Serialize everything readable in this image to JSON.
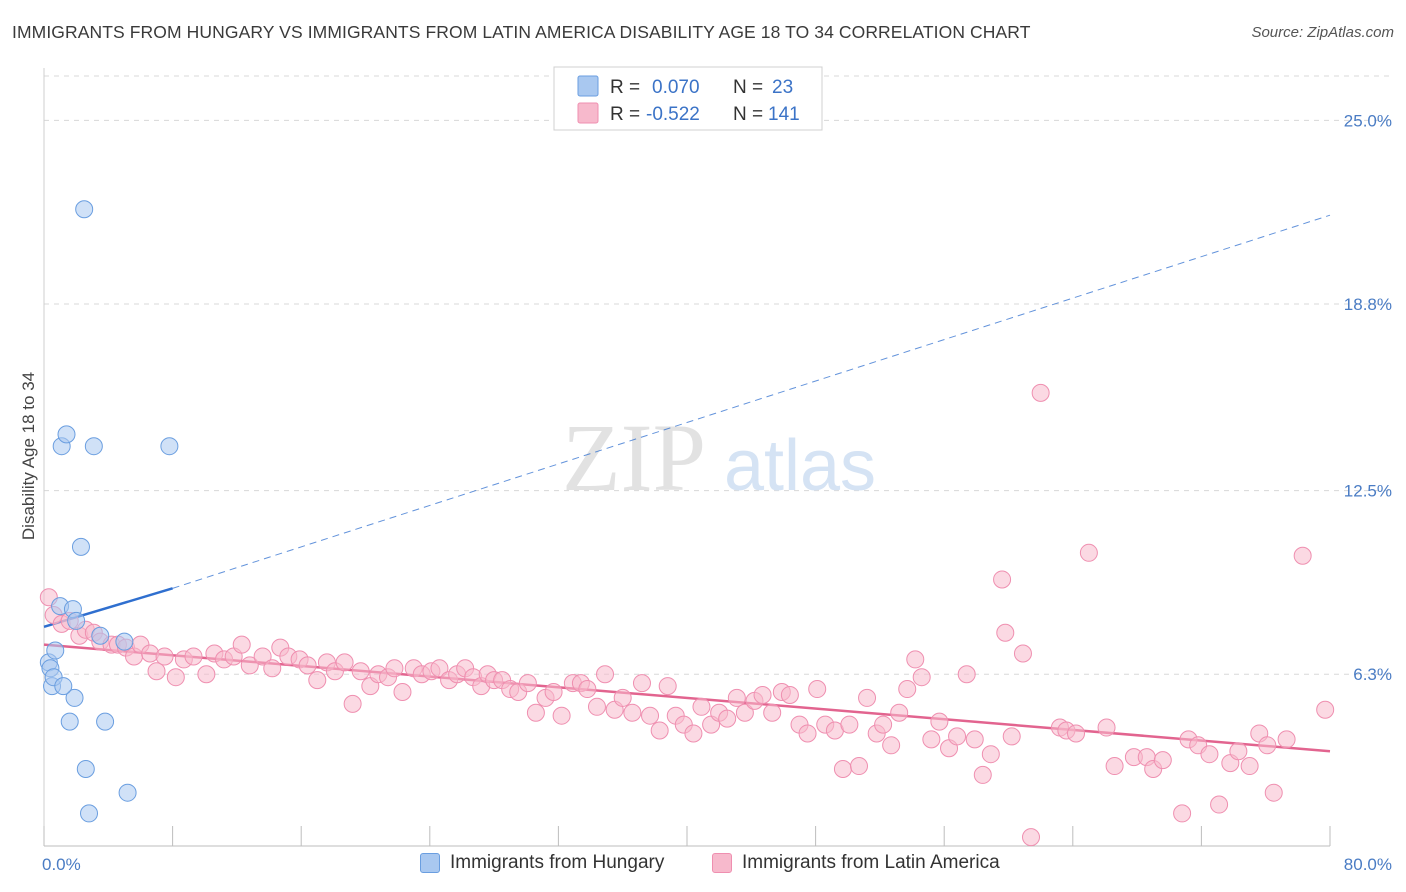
{
  "title": "IMMIGRANTS FROM HUNGARY VS IMMIGRANTS FROM LATIN AMERICA DISABILITY AGE 18 TO 34 CORRELATION CHART",
  "source": "Source: ZipAtlas.com",
  "watermark": {
    "zip": "ZIP",
    "atlas": "atlas"
  },
  "colors": {
    "hungary_fill": "#a9c8f0",
    "hungary_stroke": "#6a9ee0",
    "hungary_line": "#2f6fcf",
    "latam_fill": "#f7b9cc",
    "latam_stroke": "#ef8fb0",
    "latam_line": "#e2648f",
    "tick_label": "#4a7cc4",
    "grid": "#d8d8d8"
  },
  "legend": {
    "rows": [
      {
        "r_label": "R =",
        "r_value": "0.070",
        "n_label": "N =",
        "n_value": "23"
      },
      {
        "r_label": "R =",
        "r_value": "-0.522",
        "n_label": "N =",
        "n_value": "141"
      }
    ]
  },
  "bottom_legend": [
    "Immigrants from Hungary",
    "Immigrants from Latin America"
  ],
  "chart_data": {
    "type": "scatter",
    "title": "IMMIGRANTS FROM HUNGARY VS IMMIGRANTS FROM LATIN AMERICA DISABILITY AGE 18 TO 34 CORRELATION CHART",
    "xlabel": "",
    "ylabel": "Disability Age 18 to 34",
    "xlim": [
      0,
      80
    ],
    "ylim": [
      0.5,
      26.5
    ],
    "x_tick_labels": [
      "0.0%",
      "80.0%"
    ],
    "y_ticks": [
      6.3,
      12.5,
      18.8,
      25.0
    ],
    "y_tick_labels": [
      "6.3%",
      "12.5%",
      "18.8%",
      "25.0%"
    ],
    "grid": true,
    "legend_position": "top-center",
    "series": [
      {
        "name": "Immigrants from Hungary",
        "R": 0.07,
        "N": 23,
        "trend": {
          "x": [
            0,
            8
          ],
          "y": [
            7.9,
            9.2
          ],
          "extended_x": [
            8,
            80
          ],
          "extended_y": [
            9.2,
            21.8
          ]
        },
        "points": [
          [
            0.3,
            6.7
          ],
          [
            0.4,
            6.5
          ],
          [
            0.5,
            5.9
          ],
          [
            0.6,
            6.2
          ],
          [
            0.7,
            7.1
          ],
          [
            1.0,
            8.6
          ],
          [
            1.1,
            14.0
          ],
          [
            1.4,
            14.4
          ],
          [
            1.6,
            4.7
          ],
          [
            1.8,
            8.5
          ],
          [
            1.9,
            5.5
          ],
          [
            2.0,
            8.1
          ],
          [
            2.3,
            10.6
          ],
          [
            2.5,
            22.0
          ],
          [
            2.6,
            3.1
          ],
          [
            2.8,
            1.6
          ],
          [
            3.1,
            14.0
          ],
          [
            3.5,
            7.6
          ],
          [
            3.8,
            4.7
          ],
          [
            5.0,
            7.4
          ],
          [
            5.2,
            2.3
          ],
          [
            7.8,
            14.0
          ],
          [
            1.2,
            5.9
          ]
        ]
      },
      {
        "name": "Immigrants from Latin America",
        "R": -0.522,
        "N": 141,
        "trend": {
          "x": [
            0,
            80
          ],
          "y": [
            7.3,
            3.7
          ]
        },
        "points": [
          [
            0.3,
            8.9
          ],
          [
            0.6,
            8.3
          ],
          [
            1.1,
            8.0
          ],
          [
            1.6,
            8.1
          ],
          [
            2.2,
            7.6
          ],
          [
            2.6,
            7.8
          ],
          [
            3.1,
            7.7
          ],
          [
            3.5,
            7.4
          ],
          [
            4.2,
            7.3
          ],
          [
            4.6,
            7.3
          ],
          [
            5.1,
            7.2
          ],
          [
            5.6,
            6.9
          ],
          [
            6.0,
            7.3
          ],
          [
            6.6,
            7.0
          ],
          [
            7.0,
            6.4
          ],
          [
            7.5,
            6.9
          ],
          [
            8.2,
            6.2
          ],
          [
            8.7,
            6.8
          ],
          [
            9.3,
            6.9
          ],
          [
            10.1,
            6.3
          ],
          [
            10.6,
            7.0
          ],
          [
            11.2,
            6.8
          ],
          [
            11.8,
            6.9
          ],
          [
            12.3,
            7.3
          ],
          [
            12.8,
            6.6
          ],
          [
            13.6,
            6.9
          ],
          [
            14.2,
            6.5
          ],
          [
            14.7,
            7.2
          ],
          [
            15.2,
            6.9
          ],
          [
            15.9,
            6.8
          ],
          [
            16.4,
            6.6
          ],
          [
            17.0,
            6.1
          ],
          [
            17.6,
            6.7
          ],
          [
            18.1,
            6.4
          ],
          [
            18.7,
            6.7
          ],
          [
            19.2,
            5.3
          ],
          [
            19.7,
            6.4
          ],
          [
            20.3,
            5.9
          ],
          [
            20.8,
            6.3
          ],
          [
            21.4,
            6.2
          ],
          [
            21.8,
            6.5
          ],
          [
            22.3,
            5.7
          ],
          [
            23.0,
            6.5
          ],
          [
            23.5,
            6.3
          ],
          [
            24.1,
            6.4
          ],
          [
            24.6,
            6.5
          ],
          [
            25.2,
            6.1
          ],
          [
            25.7,
            6.3
          ],
          [
            26.2,
            6.5
          ],
          [
            26.7,
            6.2
          ],
          [
            27.2,
            5.9
          ],
          [
            27.6,
            6.3
          ],
          [
            28.0,
            6.1
          ],
          [
            28.5,
            6.1
          ],
          [
            29.0,
            5.8
          ],
          [
            29.5,
            5.7
          ],
          [
            30.1,
            6.0
          ],
          [
            30.6,
            5.0
          ],
          [
            31.2,
            5.5
          ],
          [
            31.7,
            5.7
          ],
          [
            32.2,
            4.9
          ],
          [
            32.9,
            6.0
          ],
          [
            33.4,
            6.0
          ],
          [
            33.8,
            5.8
          ],
          [
            34.4,
            5.2
          ],
          [
            34.9,
            6.3
          ],
          [
            35.5,
            5.1
          ],
          [
            36.0,
            5.5
          ],
          [
            36.6,
            5.0
          ],
          [
            37.2,
            6.0
          ],
          [
            37.7,
            4.9
          ],
          [
            38.3,
            4.4
          ],
          [
            38.8,
            5.9
          ],
          [
            39.3,
            4.9
          ],
          [
            39.8,
            4.6
          ],
          [
            40.4,
            4.3
          ],
          [
            40.9,
            5.2
          ],
          [
            41.5,
            4.6
          ],
          [
            42.0,
            5.0
          ],
          [
            42.5,
            4.8
          ],
          [
            43.1,
            5.5
          ],
          [
            43.6,
            5.0
          ],
          [
            44.2,
            5.4
          ],
          [
            44.7,
            5.6
          ],
          [
            45.3,
            5.0
          ],
          [
            45.9,
            5.7
          ],
          [
            46.4,
            5.6
          ],
          [
            47.0,
            4.6
          ],
          [
            47.5,
            4.3
          ],
          [
            48.1,
            5.8
          ],
          [
            48.6,
            4.6
          ],
          [
            49.2,
            4.4
          ],
          [
            49.7,
            3.1
          ],
          [
            50.1,
            4.6
          ],
          [
            50.7,
            3.2
          ],
          [
            51.2,
            5.5
          ],
          [
            51.8,
            4.3
          ],
          [
            52.2,
            4.6
          ],
          [
            52.7,
            3.9
          ],
          [
            53.2,
            5.0
          ],
          [
            53.7,
            5.8
          ],
          [
            54.2,
            6.8
          ],
          [
            54.6,
            6.2
          ],
          [
            55.2,
            4.1
          ],
          [
            55.7,
            4.7
          ],
          [
            56.3,
            3.8
          ],
          [
            56.8,
            4.2
          ],
          [
            57.4,
            6.3
          ],
          [
            57.9,
            4.1
          ],
          [
            58.4,
            2.9
          ],
          [
            58.9,
            3.6
          ],
          [
            59.6,
            9.5
          ],
          [
            59.8,
            7.7
          ],
          [
            60.2,
            4.2
          ],
          [
            60.9,
            7.0
          ],
          [
            61.4,
            0.8
          ],
          [
            62.0,
            15.8
          ],
          [
            63.2,
            4.5
          ],
          [
            63.6,
            4.4
          ],
          [
            64.2,
            4.3
          ],
          [
            65.0,
            10.4
          ],
          [
            66.1,
            4.5
          ],
          [
            66.6,
            3.2
          ],
          [
            67.8,
            3.5
          ],
          [
            68.6,
            3.5
          ],
          [
            69.0,
            3.1
          ],
          [
            69.6,
            3.4
          ],
          [
            70.8,
            1.6
          ],
          [
            71.2,
            4.1
          ],
          [
            71.8,
            3.9
          ],
          [
            72.5,
            3.6
          ],
          [
            73.1,
            1.9
          ],
          [
            73.8,
            3.3
          ],
          [
            74.3,
            3.7
          ],
          [
            75.0,
            3.2
          ],
          [
            75.6,
            4.3
          ],
          [
            76.1,
            3.9
          ],
          [
            76.5,
            2.3
          ],
          [
            77.3,
            4.1
          ],
          [
            78.3,
            10.3
          ],
          [
            79.7,
            5.1
          ]
        ]
      }
    ]
  }
}
